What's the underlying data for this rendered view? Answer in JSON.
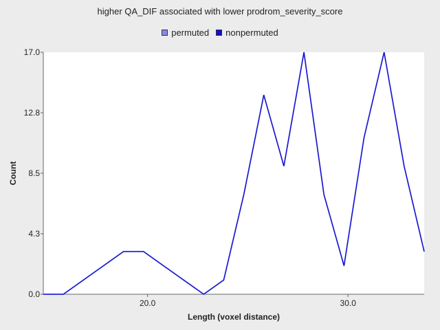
{
  "chart_data": {
    "type": "line",
    "title": "higher QA_DIF associated with lower prodrom_severity_score",
    "xlabel": "Length (voxel distance)",
    "ylabel": "Count",
    "xlim": [
      14.8,
      33.8
    ],
    "ylim": [
      0,
      17
    ],
    "x_ticks": [
      20,
      30
    ],
    "x_tick_labels": [
      "20.0",
      "30.0"
    ],
    "y_ticks": [
      0,
      4.25,
      8.5,
      12.75,
      17
    ],
    "y_tick_labels": [
      "0.0",
      "4.3",
      "8.5",
      "12.8",
      "17.0"
    ],
    "grid": false,
    "legend_position": "top-center",
    "x": [
      14.8,
      15.8,
      16.8,
      17.8,
      18.8,
      19.8,
      20.8,
      21.8,
      22.8,
      23.8,
      24.8,
      25.8,
      26.8,
      27.8,
      28.8,
      29.8,
      30.8,
      31.8,
      32.8,
      33.8
    ],
    "series": [
      {
        "name": "permuted",
        "color": "#8888ee",
        "values": [
          0,
          0,
          1,
          2,
          3,
          3,
          2,
          1,
          0,
          1,
          7,
          14,
          9,
          17,
          7,
          2,
          11,
          17,
          9,
          3
        ]
      },
      {
        "name": "nonpermuted",
        "color": "#1010cc",
        "values": [
          0,
          0,
          1,
          2,
          3,
          3,
          2,
          1,
          0,
          1,
          7,
          14,
          9,
          17,
          7,
          2,
          11,
          17,
          9,
          3
        ]
      }
    ]
  }
}
